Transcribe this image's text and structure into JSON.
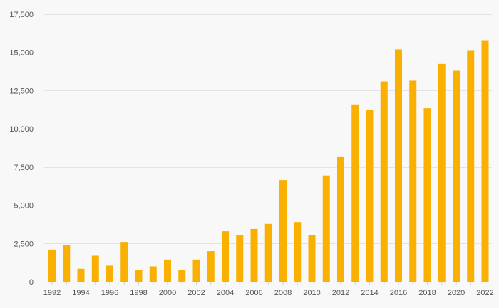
{
  "chart_data": {
    "type": "bar",
    "title": "",
    "xlabel": "",
    "ylabel": "",
    "ylim": [
      0,
      17500
    ],
    "yticks": [
      0,
      2500,
      5000,
      7500,
      10000,
      12500,
      15000,
      17500
    ],
    "ytick_labels": [
      "0",
      "2,500",
      "5,000",
      "7,500",
      "10,000",
      "12,500",
      "15,000",
      "17,500"
    ],
    "grid": true,
    "legend": "none",
    "bar_color": "#f9b000",
    "categories": [
      "1992",
      "1993",
      "1994",
      "1995",
      "1996",
      "1997",
      "1998",
      "1999",
      "2000",
      "2001",
      "2002",
      "2003",
      "2004",
      "2005",
      "2006",
      "2007",
      "2008",
      "2009",
      "2010",
      "2011",
      "2012",
      "2013",
      "2014",
      "2015",
      "2016",
      "2017",
      "2018",
      "2019",
      "2020",
      "2021",
      "2022"
    ],
    "xtick_labels": [
      "1992",
      "1994",
      "1996",
      "1998",
      "2000",
      "2002",
      "2004",
      "2006",
      "2008",
      "2010",
      "2012",
      "2014",
      "2016",
      "2018",
      "2020",
      "2022"
    ],
    "values": [
      2100,
      2400,
      850,
      1700,
      1050,
      2600,
      780,
      1000,
      1450,
      760,
      1450,
      2000,
      3300,
      3050,
      3450,
      3780,
      6650,
      3900,
      3050,
      6950,
      8150,
      11600,
      11250,
      13100,
      15200,
      13150,
      11350,
      14250,
      13800,
      15150,
      15800
    ]
  }
}
